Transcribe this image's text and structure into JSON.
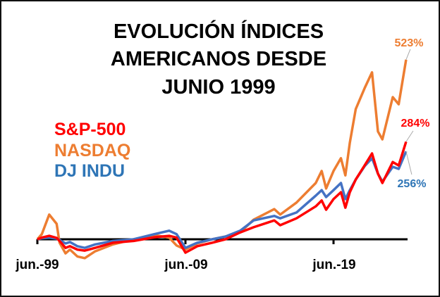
{
  "chart_data": {
    "type": "line",
    "title": [
      "EVOLUCIÓN ÍNDICES",
      "AMERICANOS DESDE",
      "JUNIO 1999"
    ],
    "xlabel": "",
    "ylabel": "",
    "x_tick_labels": [
      "jun.-99",
      "jun.-09",
      "jun.-19"
    ],
    "x_ticks": [
      1999.5,
      2009.5,
      2019.5
    ],
    "xlim": [
      1999.5,
      2024.5
    ],
    "ylim": [
      -70,
      560
    ],
    "grid": false,
    "legend_placement": "left",
    "x": [
      1999.5,
      1999.8,
      2000.3,
      2000.8,
      2001.0,
      2001.4,
      2001.7,
      2002.2,
      2002.7,
      2003.4,
      2004.6,
      2006.0,
      2007.4,
      2008.4,
      2008.9,
      2009.5,
      2010.3,
      2011.3,
      2012.2,
      2013.2,
      2014.1,
      2015.5,
      2015.9,
      2017.0,
      2018.3,
      2018.7,
      2019.0,
      2019.5,
      2020.0,
      2020.3,
      2020.6,
      2021.0,
      2021.6,
      2022.1,
      2022.5,
      2022.8,
      2023.5,
      2023.9,
      2024.4
    ],
    "series": [
      {
        "name": "NASDAQ",
        "color": "#ED7D31",
        "end_label": "523%",
        "values": [
          0,
          15,
          72,
          45,
          -10,
          -41,
          -30,
          -50,
          -55,
          -35,
          -15,
          0,
          12,
          5,
          -18,
          -30,
          -12,
          0,
          8,
          20,
          57,
          88,
          72,
          107,
          164,
          199,
          148,
          199,
          236,
          186,
          281,
          379,
          440,
          486,
          314,
          291,
          414,
          393,
          523
        ]
      },
      {
        "name": "DJ INDU",
        "color": "#4472C4",
        "end_label": "256%",
        "values": [
          0,
          3,
          5,
          2,
          -2,
          -12,
          -8,
          -20,
          -25,
          -15,
          -5,
          0,
          15,
          25,
          15,
          -25,
          -10,
          0,
          8,
          25,
          55,
          68,
          61,
          78,
          127,
          143,
          123,
          143,
          164,
          117,
          143,
          174,
          213,
          236,
          191,
          168,
          211,
          205,
          256
        ]
      },
      {
        "name": "S&P-500",
        "color": "#FF0000",
        "end_label": "284%",
        "values": [
          0,
          5,
          10,
          4,
          -5,
          -25,
          -20,
          -30,
          -33,
          -25,
          -10,
          -5,
          6,
          10,
          5,
          -39,
          -20,
          -10,
          0,
          20,
          35,
          55,
          41,
          61,
          96,
          113,
          86,
          117,
          137,
          92,
          137,
          174,
          215,
          250,
          191,
          164,
          225,
          215,
          284
        ]
      }
    ],
    "legend": [
      {
        "label": "S&P-500",
        "color": "#FF0000"
      },
      {
        "label": "NASDAQ",
        "color": "#ED7D31"
      },
      {
        "label": "DJ INDU",
        "color": "#2E75B6"
      }
    ]
  }
}
